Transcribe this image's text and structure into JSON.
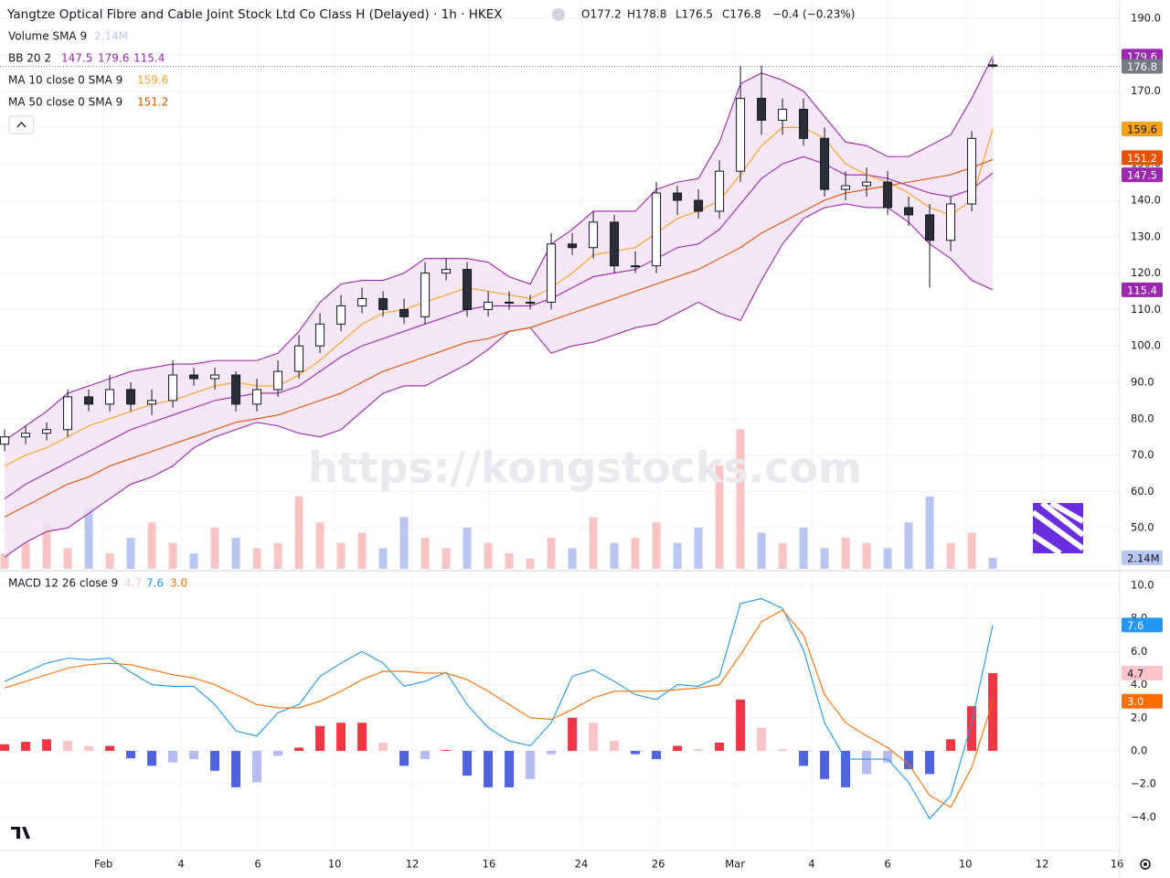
{
  "header": {
    "title": "Yangtze Optical Fibre and Cable Joint Stock Ltd Co Class H (Delayed) · 1h · HKEX",
    "open": "O177.2",
    "high": "H178.8",
    "low": "L176.5",
    "close": "C176.8",
    "change": "−0.4 (−0.23%)"
  },
  "legend": {
    "volume": "Volume SMA 9",
    "volume_value": "2.14M",
    "bb": "BB 20 2",
    "ma10": "MA 10 close 0 SMA 9",
    "ma50": "MA 50 close 0 SMA 9",
    "macd": "MACD 12 26 close 9",
    "macd_hist": "4.7",
    "macd_line": "7.6",
    "macd_signal": "3.0"
  },
  "watermark": "https://kongstocks.com",
  "chart_data": [
    {
      "type": "candlestick",
      "xlim": [
        -0.22,
        53.04
      ],
      "ylim": [
        38.74,
        195.03
      ],
      "yticks": [
        {
          "value": 50,
          "label": "50.0"
        },
        {
          "value": 60,
          "label": "60.0"
        },
        {
          "value": 70,
          "label": "70.0"
        },
        {
          "value": 80,
          "label": "80.0"
        },
        {
          "value": 90,
          "label": "90.0"
        },
        {
          "value": 100,
          "label": "100.0"
        },
        {
          "value": 110,
          "label": "110.0"
        },
        {
          "value": 120,
          "label": "120.0"
        },
        {
          "value": 130,
          "label": "130.0"
        },
        {
          "value": 140,
          "label": "140.0"
        },
        {
          "value": 150,
          "label": "150.0"
        },
        {
          "value": 160,
          "label": "160.0"
        },
        {
          "value": 170,
          "label": "170.0"
        },
        {
          "value": 180,
          "label": "180.0"
        },
        {
          "value": 190,
          "label": "190.0"
        }
      ],
      "grid": true,
      "up_color": "#ffffff",
      "down_color": "#2a2e39",
      "edge_color": "#131722",
      "open": [
        73,
        75,
        76,
        77,
        86,
        84,
        88,
        84,
        85,
        92,
        91,
        92,
        84,
        88,
        93,
        100,
        106,
        111,
        113,
        110,
        108,
        120,
        121,
        110,
        112,
        112,
        112,
        128,
        127,
        134,
        122,
        122,
        142,
        140,
        137,
        148,
        168,
        162,
        165,
        157,
        143,
        144,
        145,
        138,
        136,
        129,
        139,
        177.2
      ],
      "high": [
        77,
        78,
        79,
        88,
        88,
        92,
        90,
        88,
        96,
        94,
        94,
        93,
        91,
        96,
        103,
        109,
        114,
        116,
        115,
        113,
        123,
        124,
        123,
        115,
        115,
        114,
        131,
        131,
        137,
        136,
        126,
        145,
        144,
        143,
        151,
        177,
        177,
        168,
        168,
        160,
        148,
        149,
        148,
        141,
        139,
        141,
        159,
        178.8
      ],
      "low": [
        71,
        73,
        74,
        75,
        82,
        82,
        82,
        81,
        83,
        89,
        88,
        82,
        82,
        86,
        91,
        98,
        104,
        109,
        108,
        106,
        106,
        118,
        108,
        108,
        110,
        110,
        110,
        125,
        124,
        120,
        120,
        120,
        136,
        135,
        135,
        145,
        158,
        158,
        155,
        141,
        140,
        141,
        136,
        133,
        116,
        126,
        137,
        176.5
      ],
      "close": [
        75,
        76,
        77,
        86,
        84,
        88,
        84,
        85,
        92,
        91,
        92,
        84,
        88,
        93,
        100,
        106,
        111,
        113,
        110,
        108,
        120,
        121,
        110,
        112,
        112,
        112,
        128,
        127,
        134,
        122,
        122,
        142,
        140,
        137,
        148,
        168,
        162,
        165,
        157,
        143,
        144,
        145,
        138,
        136,
        129,
        139,
        157,
        176.8
      ],
      "bb_fill": "#f3e3f6",
      "bb_upper": {
        "color": "#9c27b0",
        "values": [
          74,
          78,
          82,
          87,
          89,
          91,
          93,
          94,
          95,
          95,
          96,
          96,
          96,
          98,
          104,
          112,
          117,
          118,
          118,
          120,
          124,
          124,
          124,
          123,
          119,
          117,
          128,
          132,
          137,
          137,
          137,
          143,
          145,
          146,
          156,
          172,
          175,
          173,
          170,
          163,
          156,
          155,
          152,
          152,
          155,
          158,
          168,
          179.6
        ]
      },
      "bb_basis": {
        "color": "#9c27b0",
        "values": [
          58,
          62,
          65,
          68,
          71,
          74,
          77,
          79,
          81,
          83,
          85,
          86,
          87,
          87,
          89,
          93,
          97,
          100,
          102,
          104,
          106,
          108,
          110,
          111,
          111,
          111,
          113,
          116,
          119,
          120,
          121,
          124,
          127,
          128,
          132,
          139,
          146,
          150,
          152,
          150,
          147,
          147,
          146,
          144,
          142,
          141,
          143,
          147.5
        ]
      },
      "bb_lower": {
        "color": "#9c27b0",
        "values": [
          42,
          46,
          49,
          50,
          54,
          58,
          62,
          64,
          67,
          72,
          75,
          77,
          79,
          78,
          76,
          75,
          77,
          82,
          87,
          89,
          89,
          92,
          95,
          99,
          104,
          105,
          98,
          100,
          101,
          103,
          105,
          106,
          109,
          112,
          109,
          107,
          118,
          128,
          135,
          138,
          139,
          138,
          138,
          134,
          128,
          124,
          118,
          115.4
        ]
      },
      "ma10": {
        "color": "#f7a21b",
        "values": [
          67,
          70,
          72,
          75,
          78,
          80,
          82,
          84,
          85,
          87,
          89,
          90,
          89,
          89,
          92,
          96,
          101,
          106,
          109,
          110,
          112,
          114,
          116,
          115,
          114,
          113,
          116,
          120,
          125,
          126,
          127,
          131,
          135,
          137,
          140,
          147,
          155,
          160,
          160,
          157,
          150,
          147,
          145,
          142,
          138,
          136,
          140,
          159.6
        ]
      },
      "ma50": {
        "color": "#e65100",
        "values": [
          53,
          56,
          59,
          62,
          64,
          67,
          69,
          71,
          73,
          75,
          77,
          79,
          80,
          81,
          83,
          85,
          87,
          90,
          93,
          95,
          97,
          99,
          101,
          102,
          104,
          105,
          107,
          109,
          111,
          113,
          115,
          117,
          119,
          121,
          124,
          127,
          131,
          134,
          137,
          140,
          142,
          143,
          144,
          145,
          146,
          147,
          149,
          151.2
        ]
      },
      "volume": {
        "ylim": [
          0,
          110
        ],
        "up_color": "#f8c4c4",
        "down_color": "#b9c6f2",
        "values": [
          3,
          5,
          9,
          4,
          12,
          3,
          6,
          9,
          5,
          3,
          8,
          6,
          4,
          5,
          14,
          9,
          5,
          7,
          4,
          10,
          6,
          4,
          8,
          5,
          3,
          2,
          6,
          4,
          10,
          5,
          6,
          9,
          5,
          8,
          20,
          27,
          7,
          5,
          8,
          4,
          6,
          5,
          4,
          9,
          14,
          5,
          7,
          2.14
        ]
      }
    },
    {
      "type": "macd",
      "xlim": [
        -0.22,
        53.04
      ],
      "ylim": [
        -6.02,
        10.55
      ],
      "yticks": [
        {
          "value": -4,
          "label": "−4.0"
        },
        {
          "value": -2,
          "label": "−2.0"
        },
        {
          "value": 0,
          "label": "0.0"
        },
        {
          "value": 2,
          "label": "2.0"
        },
        {
          "value": 4,
          "label": "4.0"
        },
        {
          "value": 6,
          "label": "6.0"
        },
        {
          "value": 8,
          "label": "8.0"
        },
        {
          "value": 10,
          "label": "10.0"
        }
      ],
      "xticks": [
        {
          "value": 4.7,
          "label": "Feb"
        },
        {
          "value": 8.39,
          "label": "4"
        },
        {
          "value": 12.04,
          "label": "6"
        },
        {
          "value": 15.7,
          "label": "10"
        },
        {
          "value": 19.39,
          "label": "12"
        },
        {
          "value": 23.04,
          "label": "16"
        },
        {
          "value": 27.43,
          "label": "24"
        },
        {
          "value": 31.09,
          "label": "26"
        },
        {
          "value": 34.74,
          "label": "Mar"
        },
        {
          "value": 38.39,
          "label": "4"
        },
        {
          "value": 42,
          "label": "6"
        },
        {
          "value": 45.7,
          "label": "10"
        },
        {
          "value": 49.35,
          "label": "12"
        },
        {
          "value": 52.91,
          "label": "16"
        }
      ],
      "grid": true,
      "macd": {
        "color": "#2196f3",
        "values": [
          4.2,
          4.75,
          5.3,
          5.6,
          5.5,
          5.6,
          4.75,
          4.0,
          3.9,
          3.9,
          2.8,
          1.2,
          0.9,
          2.3,
          2.8,
          4.5,
          5.3,
          6.0,
          5.3,
          3.9,
          4.2,
          4.75,
          2.8,
          1.4,
          0.6,
          0.3,
          1.7,
          4.5,
          4.9,
          4.2,
          3.4,
          3.1,
          4.0,
          3.9,
          4.5,
          8.9,
          9.2,
          8.6,
          6.1,
          1.7,
          -0.5,
          -0.5,
          -0.5,
          -1.9,
          -4.1,
          -2.7,
          1.7,
          7.6
        ]
      },
      "signal": {
        "color": "#ff6d00",
        "values": [
          3.8,
          4.2,
          4.6,
          5.0,
          5.2,
          5.3,
          5.2,
          4.9,
          4.6,
          4.4,
          4.0,
          3.4,
          2.8,
          2.6,
          2.6,
          3.0,
          3.6,
          4.3,
          4.8,
          4.8,
          4.7,
          4.7,
          4.3,
          3.6,
          2.8,
          2.0,
          1.9,
          2.5,
          3.2,
          3.6,
          3.6,
          3.6,
          3.7,
          3.8,
          4.0,
          5.8,
          7.8,
          8.5,
          7.0,
          3.4,
          1.7,
          0.9,
          0.2,
          -0.8,
          -2.7,
          -3.4,
          -1.0,
          3.0
        ]
      },
      "histogram": {
        "up_strong": "#f23645",
        "up_weak": "#fbc4c8",
        "down_strong": "#4f63dc",
        "down_weak": "#b5bcf2",
        "values": [
          0.4,
          0.55,
          0.7,
          0.6,
          0.3,
          0.3,
          -0.45,
          -0.9,
          -0.7,
          -0.5,
          -1.2,
          -2.2,
          -1.9,
          -0.3,
          0.2,
          1.5,
          1.7,
          1.7,
          0.5,
          -0.9,
          -0.5,
          0.05,
          -1.5,
          -2.2,
          -2.2,
          -1.7,
          -0.2,
          2.0,
          1.7,
          0.6,
          -0.2,
          -0.5,
          0.3,
          0.1,
          0.5,
          3.1,
          1.4,
          0.1,
          -0.9,
          -1.7,
          -2.2,
          -1.4,
          -0.7,
          -1.1,
          -1.4,
          0.7,
          2.7,
          4.7
        ]
      }
    }
  ]
}
